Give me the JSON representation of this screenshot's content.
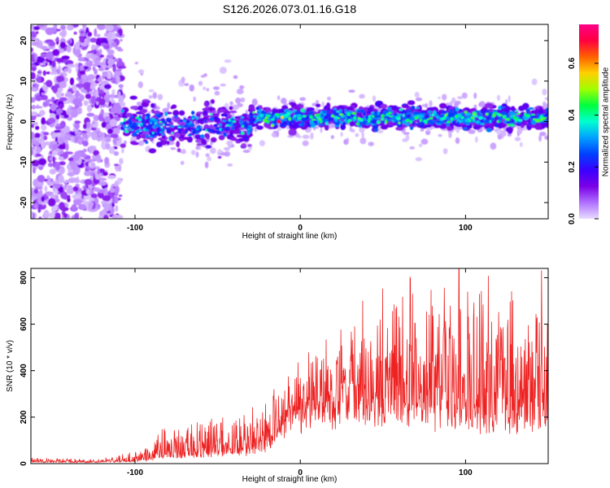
{
  "title": "S126.2026.073.01.16.G18",
  "chart_data": [
    {
      "type": "heatmap",
      "xlabel": "Height of straight line (km)",
      "ylabel": "Frequency (Hz)",
      "xlim": [
        -163,
        150
      ],
      "ylim": [
        -24,
        24
      ],
      "xticks": [
        -100,
        0,
        100
      ],
      "yticks": [
        -20,
        -10,
        0,
        10,
        20
      ],
      "xtick_labels": [
        "-100",
        "0",
        "100"
      ],
      "ytick_labels": [
        "-20",
        "-10",
        "0",
        "10",
        "20"
      ],
      "colorbar": {
        "label": "Normalized spectral amplitude",
        "range": [
          0,
          0.75
        ],
        "ticks": [
          0.0,
          0.2,
          0.4,
          0.6
        ],
        "tick_labels": [
          "0.0",
          "0.2",
          "0.4",
          "0.6"
        ],
        "colors": [
          "#e8dcff",
          "#b070ff",
          "#7a00e6",
          "#3a00ff",
          "#0040ff",
          "#00a0ff",
          "#00ffd0",
          "#00ff40",
          "#a0ff00",
          "#ffd000",
          "#ff6000",
          "#ff0040",
          "#ff0088"
        ]
      },
      "regions": [
        {
          "name": "noise",
          "x": [
            -163,
            -108
          ],
          "freq_center": 0,
          "freq_spread": 24,
          "amplitude": 0.05
        },
        {
          "name": "onset",
          "x": [
            -108,
            -30
          ],
          "freq_center": -1,
          "freq_spread": 5,
          "amplitude": 0.25
        },
        {
          "name": "signal",
          "x": [
            -30,
            150
          ],
          "freq_center": 1,
          "freq_spread": 3,
          "amplitude": 0.4
        }
      ],
      "peak_amplitude": 0.72
    },
    {
      "type": "line",
      "xlabel": "Height of straight line (km)",
      "ylabel": "SNR (10 * v/v)",
      "xlim": [
        -163,
        150
      ],
      "ylim": [
        0,
        840
      ],
      "xticks": [
        -100,
        0,
        100
      ],
      "yticks": [
        0,
        200,
        400,
        600,
        800
      ],
      "xtick_labels": [
        "-100",
        "0",
        "100"
      ],
      "ytick_labels": [
        "0",
        "200",
        "400",
        "600",
        "800"
      ],
      "color": "#ee2222",
      "envelope": [
        {
          "x": -163,
          "base": 5,
          "range": 20
        },
        {
          "x": -120,
          "base": 5,
          "range": 15
        },
        {
          "x": -95,
          "base": 10,
          "range": 50
        },
        {
          "x": -85,
          "base": 25,
          "range": 120
        },
        {
          "x": -60,
          "base": 30,
          "range": 150
        },
        {
          "x": -35,
          "base": 40,
          "range": 180
        },
        {
          "x": -18,
          "base": 60,
          "range": 250
        },
        {
          "x": -10,
          "base": 150,
          "range": 220
        },
        {
          "x": 10,
          "base": 200,
          "range": 280
        },
        {
          "x": 35,
          "base": 220,
          "range": 450
        },
        {
          "x": 70,
          "base": 200,
          "range": 600
        },
        {
          "x": 110,
          "base": 170,
          "range": 600
        },
        {
          "x": 150,
          "base": 150,
          "range": 600
        }
      ],
      "peaks": [
        {
          "x": 96,
          "y": 840
        },
        {
          "x": 146,
          "y": 830
        }
      ]
    }
  ]
}
